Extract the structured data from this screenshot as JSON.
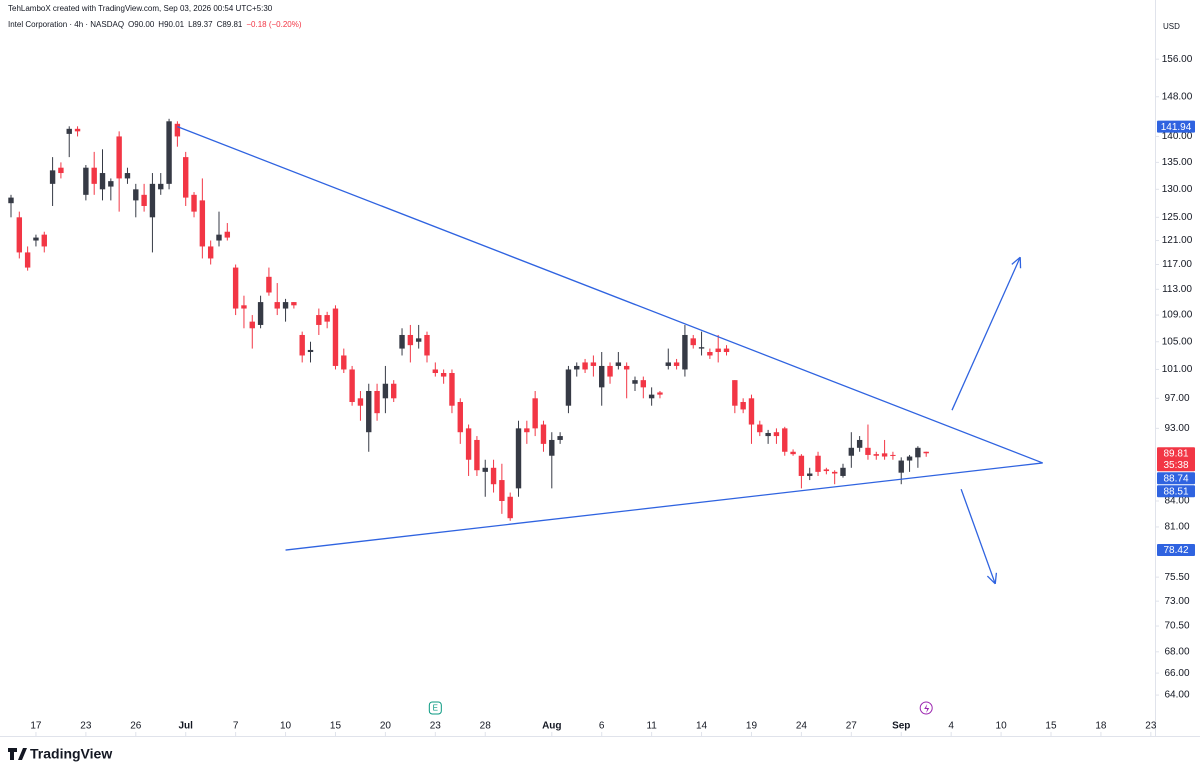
{
  "chart_data": {
    "type": "candlestick",
    "credit": "TehLamboX created with TradingView.com, Sep 03, 2026 00:54 UTC+5:30",
    "symbol": "Intel Corporation · 4h · NASDAQ",
    "ohlc_labels": [
      "O90.00",
      "H90.01",
      "L89.37",
      "C89.81",
      "−0.18 (−0.20%)"
    ],
    "currency": "USD",
    "brand": "TradingView",
    "earnings_badge": "E",
    "log_scale": true,
    "up_color": "#363a45",
    "down_color": "#f23645",
    "line_color": "#2f63e0",
    "ylim": [
      62.5,
      166.2
    ],
    "xlim": [
      -0.72,
      137.5
    ],
    "yticks": [
      {
        "value": 156,
        "label": "156.00"
      },
      {
        "value": 148,
        "label": "148.00"
      },
      {
        "value": 140,
        "label": "140.00"
      },
      {
        "value": 135,
        "label": "135.00"
      },
      {
        "value": 130,
        "label": "130.00"
      },
      {
        "value": 125,
        "label": "125.00"
      },
      {
        "value": 121,
        "label": "121.00"
      },
      {
        "value": 117,
        "label": "117.00"
      },
      {
        "value": 113,
        "label": "113.00"
      },
      {
        "value": 109,
        "label": "109.00"
      },
      {
        "value": 105,
        "label": "105.00"
      },
      {
        "value": 101,
        "label": "101.00"
      },
      {
        "value": 97,
        "label": "97.00"
      },
      {
        "value": 93,
        "label": "93.00"
      },
      {
        "value": 84,
        "label": "84.00"
      },
      {
        "value": 81,
        "label": "81.00"
      },
      {
        "value": 75.5,
        "label": "75.50"
      },
      {
        "value": 73,
        "label": "73.00"
      },
      {
        "value": 70.5,
        "label": "70.50"
      },
      {
        "value": 68,
        "label": "68.00"
      },
      {
        "value": 66,
        "label": "66.00"
      },
      {
        "value": 64,
        "label": "64.00"
      }
    ],
    "xticks": [
      {
        "value": 3,
        "label": "17"
      },
      {
        "value": 9,
        "label": "23"
      },
      {
        "value": 15,
        "label": "26"
      },
      {
        "value": 21,
        "label": "Jul"
      },
      {
        "value": 27,
        "label": "7"
      },
      {
        "value": 33,
        "label": "10"
      },
      {
        "value": 39,
        "label": "15"
      },
      {
        "value": 45,
        "label": "20"
      },
      {
        "value": 51,
        "label": "23"
      },
      {
        "value": 57,
        "label": "28"
      },
      {
        "value": 65,
        "label": "Aug"
      },
      {
        "value": 71,
        "label": "6"
      },
      {
        "value": 77,
        "label": "11"
      },
      {
        "value": 83,
        "label": "14"
      },
      {
        "value": 89,
        "label": "19"
      },
      {
        "value": 95,
        "label": "24"
      },
      {
        "value": 101,
        "label": "27"
      },
      {
        "value": 107,
        "label": "Sep"
      },
      {
        "value": 113,
        "label": "4"
      },
      {
        "value": 119,
        "label": "10"
      },
      {
        "value": 125,
        "label": "15"
      },
      {
        "value": 131,
        "label": "18"
      },
      {
        "value": 137,
        "label": "23"
      }
    ],
    "price_labels": [
      {
        "value": 141.94,
        "label": "141.94",
        "color": "#2f63e0"
      },
      {
        "value": 89.81,
        "label": "89.81",
        "color": "#f23645",
        "countdown": "35:38"
      },
      {
        "value": 88.74,
        "label": "88.74",
        "color": "#2f63e0"
      },
      {
        "value": 88.51,
        "label": "88.51",
        "color": "#2f63e0"
      },
      {
        "value": 78.42,
        "label": "78.42",
        "color": "#2f63e0"
      }
    ],
    "trendlines": [
      {
        "x": [
          20,
          124
        ],
        "y": [
          141.94,
          88.6
        ]
      },
      {
        "x": [
          33,
          124
        ],
        "y": [
          78.42,
          88.6
        ]
      }
    ],
    "arrows": [
      {
        "x": [
          113.1,
          121.3
        ],
        "y": [
          95.4,
          118.2
        ]
      },
      {
        "x": [
          114.2,
          118.3
        ],
        "y": [
          85.4,
          74.8
        ]
      }
    ],
    "earnings_x": 51,
    "dividend_x": 110,
    "ohlc": [
      [
        127.5,
        129,
        125,
        128.5
      ],
      [
        125,
        126,
        118,
        119
      ],
      [
        119,
        120,
        116,
        116.5
      ],
      [
        121,
        122,
        120,
        121.5
      ],
      [
        122,
        122.5,
        119,
        120
      ],
      [
        131,
        136,
        127,
        133.5
      ],
      [
        134,
        135,
        132,
        133
      ],
      [
        140.5,
        142,
        136,
        141.5
      ],
      [
        141.5,
        142,
        140,
        141
      ],
      [
        129,
        134.5,
        128,
        134
      ],
      [
        134,
        137,
        129,
        131
      ],
      [
        130,
        137.5,
        128,
        133
      ],
      [
        130.5,
        132,
        128,
        131.5
      ],
      [
        140,
        141,
        126,
        132
      ],
      [
        132,
        134,
        131,
        133
      ],
      [
        128,
        131,
        125,
        130
      ],
      [
        129,
        131,
        126,
        127
      ],
      [
        125,
        133,
        119,
        131
      ],
      [
        130,
        133,
        129,
        131
      ],
      [
        131,
        143.5,
        130,
        143
      ],
      [
        142.5,
        143,
        138,
        140
      ],
      [
        136,
        137,
        127,
        128.5
      ],
      [
        129,
        129.5,
        125,
        126
      ],
      [
        128,
        132,
        118,
        120
      ],
      [
        120,
        121,
        117,
        118
      ],
      [
        121,
        126,
        120,
        122
      ],
      [
        122.5,
        124,
        121,
        121.5
      ],
      [
        116.5,
        117,
        109,
        110
      ],
      [
        110.5,
        112,
        107,
        110
      ],
      [
        108,
        109,
        104,
        107
      ],
      [
        107.5,
        112,
        107,
        111
      ],
      [
        115,
        116.5,
        112,
        112.5
      ],
      [
        111,
        114,
        109,
        110
      ],
      [
        110,
        111.5,
        108,
        111
      ],
      [
        111,
        111,
        110,
        110.5
      ],
      [
        106,
        106.5,
        102,
        103
      ],
      [
        103.5,
        105,
        102,
        103.8
      ],
      [
        109,
        110,
        106,
        107.5
      ],
      [
        109,
        109.5,
        107,
        108
      ],
      [
        110,
        110.5,
        101,
        101.5
      ],
      [
        103,
        104,
        100.5,
        101
      ],
      [
        101,
        101.5,
        96,
        96.5
      ],
      [
        97,
        98,
        94,
        96
      ],
      [
        92.5,
        99,
        90,
        98
      ],
      [
        98,
        99,
        94,
        95
      ],
      [
        97,
        101.5,
        95,
        99
      ],
      [
        99,
        99.5,
        96.5,
        97
      ],
      [
        104,
        107,
        103,
        106
      ],
      [
        106,
        107.5,
        102,
        104.5
      ],
      [
        105,
        107.5,
        104,
        105.5
      ],
      [
        106,
        106.5,
        102,
        103
      ],
      [
        101,
        102,
        100,
        100.5
      ],
      [
        100.5,
        101,
        99,
        100
      ],
      [
        100.5,
        101,
        95,
        96
      ],
      [
        96.5,
        97,
        91,
        92.5
      ],
      [
        93,
        93.5,
        87,
        89
      ],
      [
        91.5,
        92,
        87,
        87.7
      ],
      [
        87.5,
        89,
        84.5,
        88
      ],
      [
        88,
        89,
        85,
        86
      ],
      [
        86.5,
        88.5,
        82.5,
        84
      ],
      [
        84.5,
        85,
        81.7,
        82
      ],
      [
        85.5,
        94,
        84.5,
        93
      ],
      [
        93,
        94,
        91,
        92.5
      ],
      [
        97,
        98,
        92,
        93
      ],
      [
        93.5,
        94,
        90,
        91
      ],
      [
        89.5,
        92.5,
        85.5,
        91.5
      ],
      [
        91.5,
        92.5,
        91,
        92
      ],
      [
        96,
        101.5,
        95,
        101
      ],
      [
        101,
        102,
        100,
        101.5
      ],
      [
        102,
        102.5,
        100.5,
        101
      ],
      [
        102,
        103,
        100,
        101.5
      ],
      [
        98.5,
        103.5,
        96,
        101.5
      ],
      [
        101.5,
        102,
        99,
        100
      ],
      [
        101.5,
        103.5,
        101,
        102
      ],
      [
        101.5,
        102,
        97,
        101
      ],
      [
        99,
        100,
        98,
        99.5
      ],
      [
        99.5,
        100,
        97,
        98.5
      ],
      [
        97,
        98.5,
        96,
        97.5
      ],
      [
        97.8,
        98,
        97,
        97.5
      ],
      [
        101.5,
        104,
        101,
        102
      ],
      [
        102,
        102.5,
        101,
        101.5
      ],
      [
        101,
        107.5,
        100,
        106
      ],
      [
        105.5,
        106,
        104,
        104.5
      ],
      [
        104,
        106.5,
        103,
        104.2
      ],
      [
        103.5,
        104,
        102.5,
        103
      ],
      [
        104,
        106,
        102,
        103.5
      ],
      [
        104,
        104.5,
        103,
        103.5
      ],
      [
        99.5,
        99.5,
        95,
        96
      ],
      [
        96.5,
        97,
        95,
        95.5
      ],
      [
        97,
        97.5,
        91,
        93.5
      ],
      [
        93.5,
        94,
        92,
        92.5
      ],
      [
        92,
        92.8,
        91,
        92.4
      ],
      [
        92.5,
        93,
        91,
        92
      ],
      [
        93,
        93.2,
        89.5,
        90
      ],
      [
        90,
        90.3,
        89.5,
        89.7
      ],
      [
        89.5,
        89.7,
        85.5,
        87
      ],
      [
        87,
        88,
        86.5,
        87.3
      ],
      [
        89.5,
        90,
        87,
        87.5
      ],
      [
        87.8,
        88,
        87.2,
        87.6
      ],
      [
        87.5,
        87.7,
        86,
        87.3
      ],
      [
        87,
        88.5,
        86.8,
        88
      ],
      [
        89.5,
        92.5,
        88,
        90.5
      ],
      [
        90.5,
        92,
        90,
        91.5
      ],
      [
        90.5,
        93.5,
        89,
        89.6
      ],
      [
        89.7,
        90,
        89,
        89.5
      ],
      [
        89.8,
        91.5,
        89,
        89.4
      ],
      [
        89.6,
        90,
        89,
        89.5
      ],
      [
        87.4,
        89.3,
        86,
        88.9
      ],
      [
        88.9,
        89.6,
        87.5,
        89.4
      ],
      [
        89.3,
        90.7,
        88,
        90.5
      ],
      [
        90,
        90.01,
        89.37,
        89.81
      ]
    ]
  }
}
